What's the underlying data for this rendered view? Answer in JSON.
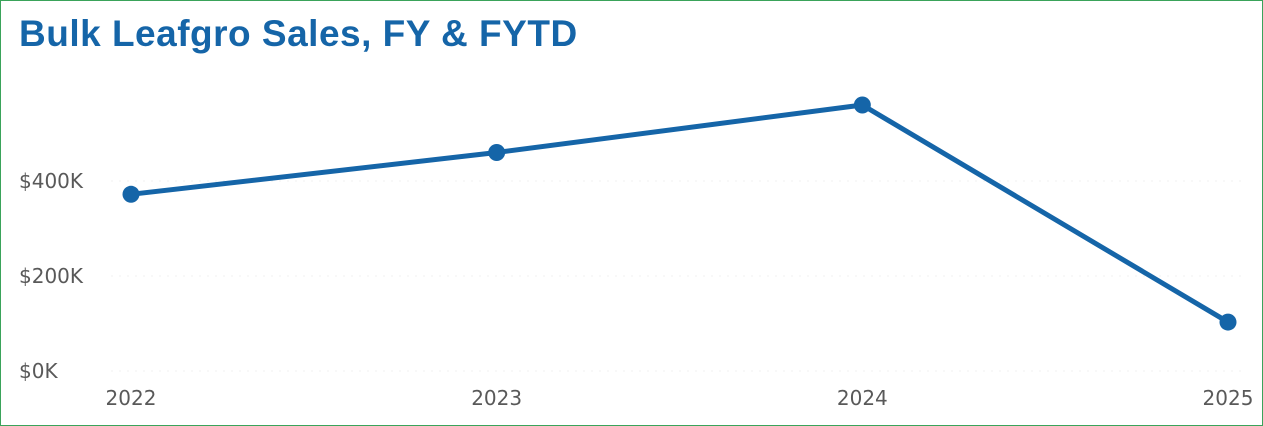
{
  "chart_data": {
    "type": "line",
    "title": "Bulk Leafgro Sales, FY & FYTD",
    "xlabel": "",
    "ylabel": "",
    "categories": [
      "2022",
      "2023",
      "2024",
      "2025"
    ],
    "series": [
      {
        "values": [
          372000,
          460000,
          560000,
          103000
        ],
        "color": "#1565a8"
      }
    ],
    "ylim": [
      0,
      600000
    ],
    "yticks": [
      0,
      200000,
      400000
    ],
    "ytick_labels": [
      "$0K",
      "$200K",
      "$400K"
    ],
    "grid": false,
    "legend": "none"
  }
}
